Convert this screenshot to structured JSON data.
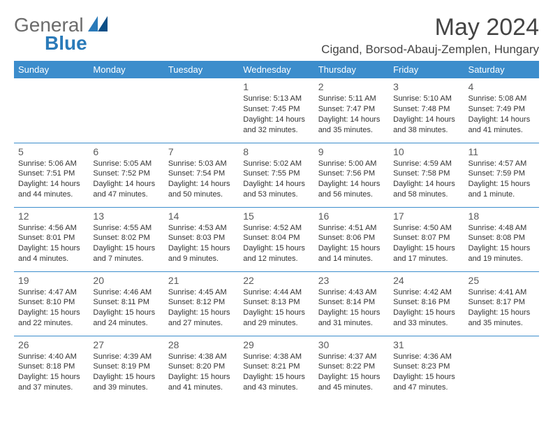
{
  "logo": {
    "general": "General",
    "blue": "Blue"
  },
  "title": "May 2024",
  "location": "Cigand, Borsod-Abauj-Zemplen, Hungary",
  "colors": {
    "header_bg": "#3c8dcc",
    "header_fg": "#ffffff",
    "rule": "#3c8dcc",
    "page_bg": "#ffffff",
    "logo_general": "#6b6b6b",
    "logo_blue": "#2a7ab9",
    "title_color": "#444444",
    "daynum_color": "#5a5a5a",
    "text_color": "#333333"
  },
  "typography": {
    "title_fontsize": 34,
    "location_fontsize": 17,
    "weekday_fontsize": 13,
    "daynum_fontsize": 14,
    "body_fontsize": 11
  },
  "weekdays": [
    "Sunday",
    "Monday",
    "Tuesday",
    "Wednesday",
    "Thursday",
    "Friday",
    "Saturday"
  ],
  "weeks": [
    [
      null,
      null,
      null,
      {
        "n": "1",
        "sr": "5:13 AM",
        "ss": "7:45 PM",
        "dl": "14 hours and 32 minutes."
      },
      {
        "n": "2",
        "sr": "5:11 AM",
        "ss": "7:47 PM",
        "dl": "14 hours and 35 minutes."
      },
      {
        "n": "3",
        "sr": "5:10 AM",
        "ss": "7:48 PM",
        "dl": "14 hours and 38 minutes."
      },
      {
        "n": "4",
        "sr": "5:08 AM",
        "ss": "7:49 PM",
        "dl": "14 hours and 41 minutes."
      }
    ],
    [
      {
        "n": "5",
        "sr": "5:06 AM",
        "ss": "7:51 PM",
        "dl": "14 hours and 44 minutes."
      },
      {
        "n": "6",
        "sr": "5:05 AM",
        "ss": "7:52 PM",
        "dl": "14 hours and 47 minutes."
      },
      {
        "n": "7",
        "sr": "5:03 AM",
        "ss": "7:54 PM",
        "dl": "14 hours and 50 minutes."
      },
      {
        "n": "8",
        "sr": "5:02 AM",
        "ss": "7:55 PM",
        "dl": "14 hours and 53 minutes."
      },
      {
        "n": "9",
        "sr": "5:00 AM",
        "ss": "7:56 PM",
        "dl": "14 hours and 56 minutes."
      },
      {
        "n": "10",
        "sr": "4:59 AM",
        "ss": "7:58 PM",
        "dl": "14 hours and 58 minutes."
      },
      {
        "n": "11",
        "sr": "4:57 AM",
        "ss": "7:59 PM",
        "dl": "15 hours and 1 minute."
      }
    ],
    [
      {
        "n": "12",
        "sr": "4:56 AM",
        "ss": "8:01 PM",
        "dl": "15 hours and 4 minutes."
      },
      {
        "n": "13",
        "sr": "4:55 AM",
        "ss": "8:02 PM",
        "dl": "15 hours and 7 minutes."
      },
      {
        "n": "14",
        "sr": "4:53 AM",
        "ss": "8:03 PM",
        "dl": "15 hours and 9 minutes."
      },
      {
        "n": "15",
        "sr": "4:52 AM",
        "ss": "8:04 PM",
        "dl": "15 hours and 12 minutes."
      },
      {
        "n": "16",
        "sr": "4:51 AM",
        "ss": "8:06 PM",
        "dl": "15 hours and 14 minutes."
      },
      {
        "n": "17",
        "sr": "4:50 AM",
        "ss": "8:07 PM",
        "dl": "15 hours and 17 minutes."
      },
      {
        "n": "18",
        "sr": "4:48 AM",
        "ss": "8:08 PM",
        "dl": "15 hours and 19 minutes."
      }
    ],
    [
      {
        "n": "19",
        "sr": "4:47 AM",
        "ss": "8:10 PM",
        "dl": "15 hours and 22 minutes."
      },
      {
        "n": "20",
        "sr": "4:46 AM",
        "ss": "8:11 PM",
        "dl": "15 hours and 24 minutes."
      },
      {
        "n": "21",
        "sr": "4:45 AM",
        "ss": "8:12 PM",
        "dl": "15 hours and 27 minutes."
      },
      {
        "n": "22",
        "sr": "4:44 AM",
        "ss": "8:13 PM",
        "dl": "15 hours and 29 minutes."
      },
      {
        "n": "23",
        "sr": "4:43 AM",
        "ss": "8:14 PM",
        "dl": "15 hours and 31 minutes."
      },
      {
        "n": "24",
        "sr": "4:42 AM",
        "ss": "8:16 PM",
        "dl": "15 hours and 33 minutes."
      },
      {
        "n": "25",
        "sr": "4:41 AM",
        "ss": "8:17 PM",
        "dl": "15 hours and 35 minutes."
      }
    ],
    [
      {
        "n": "26",
        "sr": "4:40 AM",
        "ss": "8:18 PM",
        "dl": "15 hours and 37 minutes."
      },
      {
        "n": "27",
        "sr": "4:39 AM",
        "ss": "8:19 PM",
        "dl": "15 hours and 39 minutes."
      },
      {
        "n": "28",
        "sr": "4:38 AM",
        "ss": "8:20 PM",
        "dl": "15 hours and 41 minutes."
      },
      {
        "n": "29",
        "sr": "4:38 AM",
        "ss": "8:21 PM",
        "dl": "15 hours and 43 minutes."
      },
      {
        "n": "30",
        "sr": "4:37 AM",
        "ss": "8:22 PM",
        "dl": "15 hours and 45 minutes."
      },
      {
        "n": "31",
        "sr": "4:36 AM",
        "ss": "8:23 PM",
        "dl": "15 hours and 47 minutes."
      },
      null
    ]
  ],
  "labels": {
    "sunrise": "Sunrise:",
    "sunset": "Sunset:",
    "daylight": "Daylight:"
  }
}
